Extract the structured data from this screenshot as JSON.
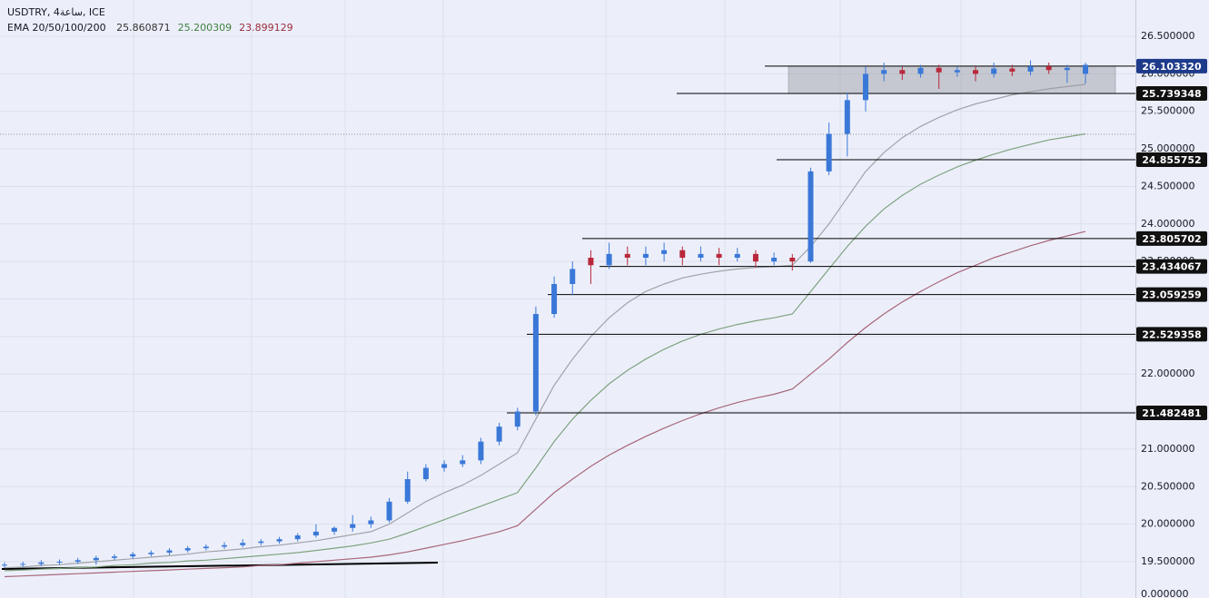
{
  "chart_data": {
    "type": "candlestick",
    "title": "USDTRY, 4ساعة, ICE",
    "indicator": {
      "label": "EMA 20/50/100/200",
      "values": [
        25.860871,
        25.200309,
        23.899129
      ],
      "colors": [
        "#333333",
        "#3f7f3f",
        "#9b2c3c"
      ]
    },
    "ylim": [
      19.016,
      26.984
    ],
    "yticks": [
      {
        "value": 19.5,
        "label": "19.500000"
      },
      {
        "value": 20,
        "label": "20.000000"
      },
      {
        "value": 20.5,
        "label": "20.500000"
      },
      {
        "value": 21,
        "label": "21.000000"
      },
      {
        "value": 21.5,
        "label": "21.500000"
      },
      {
        "value": 22,
        "label": "22.000000"
      },
      {
        "value": 22.5,
        "label": "22.500000"
      },
      {
        "value": 23,
        "label": "23.000000"
      },
      {
        "value": 23.5,
        "label": "23.500000"
      },
      {
        "value": 24,
        "label": "24.000000"
      },
      {
        "value": 24.5,
        "label": "24.500000"
      },
      {
        "value": 25,
        "label": "25.000000"
      },
      {
        "value": 25.5,
        "label": "25.500000"
      },
      {
        "value": 26,
        "label": "26.000000"
      },
      {
        "value": 26.5,
        "label": "26.500000"
      }
    ],
    "bottom_label": "0.000000",
    "up_color": "#3a78d8",
    "down_color": "#b8283a",
    "ohlc": [
      [
        19.45,
        19.49,
        19.42,
        19.46
      ],
      [
        19.46,
        19.5,
        19.43,
        19.47
      ],
      [
        19.47,
        19.52,
        19.44,
        19.49
      ],
      [
        19.49,
        19.53,
        19.46,
        19.5
      ],
      [
        19.5,
        19.55,
        19.47,
        19.52
      ],
      [
        19.52,
        19.58,
        19.46,
        19.55
      ],
      [
        19.55,
        19.6,
        19.52,
        19.57
      ],
      [
        19.57,
        19.63,
        19.54,
        19.6
      ],
      [
        19.6,
        19.65,
        19.57,
        19.62
      ],
      [
        19.62,
        19.68,
        19.59,
        19.65
      ],
      [
        19.65,
        19.71,
        19.62,
        19.68
      ],
      [
        19.68,
        19.73,
        19.65,
        19.7
      ],
      [
        19.7,
        19.76,
        19.67,
        19.72
      ],
      [
        19.72,
        19.8,
        19.69,
        19.75
      ],
      [
        19.75,
        19.8,
        19.72,
        19.77
      ],
      [
        19.77,
        19.83,
        19.74,
        19.8
      ],
      [
        19.8,
        19.88,
        19.77,
        19.85
      ],
      [
        19.85,
        20.0,
        19.82,
        19.9
      ],
      [
        19.9,
        19.97,
        19.86,
        19.95
      ],
      [
        19.95,
        20.12,
        19.9,
        20.0
      ],
      [
        20.0,
        20.1,
        19.95,
        20.05
      ],
      [
        20.05,
        20.35,
        20.02,
        20.3
      ],
      [
        20.3,
        20.7,
        20.27,
        20.6
      ],
      [
        20.6,
        20.8,
        20.57,
        20.75
      ],
      [
        20.75,
        20.85,
        20.7,
        20.8
      ],
      [
        20.8,
        20.92,
        20.76,
        20.85
      ],
      [
        20.85,
        21.15,
        20.8,
        21.1
      ],
      [
        21.1,
        21.35,
        21.05,
        21.3
      ],
      [
        21.3,
        21.55,
        21.25,
        21.5
      ],
      [
        21.5,
        22.9,
        21.45,
        22.8
      ],
      [
        22.8,
        23.3,
        22.75,
        23.2
      ],
      [
        23.2,
        23.5,
        23.05,
        23.4
      ],
      [
        23.55,
        23.65,
        23.2,
        23.45
      ],
      [
        23.45,
        23.75,
        23.4,
        23.6
      ],
      [
        23.6,
        23.7,
        23.45,
        23.55
      ],
      [
        23.55,
        23.7,
        23.45,
        23.6
      ],
      [
        23.6,
        23.75,
        23.5,
        23.65
      ],
      [
        23.65,
        23.7,
        23.45,
        23.55
      ],
      [
        23.55,
        23.7,
        23.5,
        23.6
      ],
      [
        23.6,
        23.68,
        23.45,
        23.55
      ],
      [
        23.55,
        23.68,
        23.5,
        23.6
      ],
      [
        23.6,
        23.65,
        23.42,
        23.5
      ],
      [
        23.5,
        23.62,
        23.45,
        23.55
      ],
      [
        23.55,
        23.6,
        23.38,
        23.5
      ],
      [
        23.5,
        24.75,
        23.48,
        24.7
      ],
      [
        24.7,
        25.35,
        24.65,
        25.2
      ],
      [
        25.2,
        25.75,
        24.9,
        25.65
      ],
      [
        25.65,
        26.1,
        25.5,
        26.0
      ],
      [
        26.0,
        26.15,
        25.9,
        26.05
      ],
      [
        26.05,
        26.1,
        25.92,
        26.0
      ],
      [
        26.0,
        26.12,
        25.95,
        26.08
      ],
      [
        26.08,
        26.12,
        25.8,
        26.02
      ],
      [
        26.02,
        26.1,
        25.96,
        26.05
      ],
      [
        26.05,
        26.1,
        25.9,
        26.0
      ],
      [
        26.0,
        26.15,
        25.95,
        26.07
      ],
      [
        26.07,
        26.12,
        25.97,
        26.03
      ],
      [
        26.03,
        26.18,
        25.98,
        26.1
      ],
      [
        26.1,
        26.15,
        26.0,
        26.05
      ],
      [
        26.05,
        26.12,
        25.88,
        26.08
      ],
      [
        26.0,
        26.15,
        25.87,
        26.12
      ]
    ],
    "series": [
      {
        "color": "#a0a4a8",
        "values": [
          19.42,
          19.43,
          19.45,
          19.46,
          19.48,
          19.5,
          19.52,
          19.54,
          19.56,
          19.58,
          19.6,
          19.63,
          19.65,
          19.67,
          19.7,
          19.72,
          19.75,
          19.78,
          19.82,
          19.86,
          19.9,
          20.0,
          20.15,
          20.3,
          20.42,
          20.52,
          20.65,
          20.8,
          20.95,
          21.4,
          21.85,
          22.2,
          22.5,
          22.75,
          22.95,
          23.1,
          23.2,
          23.28,
          23.33,
          23.37,
          23.4,
          23.42,
          23.43,
          23.45,
          23.7,
          24.0,
          24.35,
          24.7,
          24.95,
          25.15,
          25.3,
          25.42,
          25.52,
          25.6,
          25.66,
          25.72,
          25.76,
          25.8,
          25.83,
          25.86
        ]
      },
      {
        "color": "#7fa37f",
        "values": [
          19.38,
          19.39,
          19.4,
          19.41,
          19.42,
          19.43,
          19.45,
          19.46,
          19.48,
          19.49,
          19.51,
          19.52,
          19.54,
          19.56,
          19.58,
          19.6,
          19.62,
          19.65,
          19.68,
          19.71,
          19.75,
          19.8,
          19.88,
          19.97,
          20.06,
          20.15,
          20.24,
          20.33,
          20.42,
          20.75,
          21.1,
          21.4,
          21.65,
          21.87,
          22.05,
          22.2,
          22.33,
          22.44,
          22.53,
          22.6,
          22.66,
          22.71,
          22.75,
          22.8,
          23.1,
          23.4,
          23.7,
          23.97,
          24.2,
          24.38,
          24.53,
          24.65,
          24.76,
          24.85,
          24.93,
          25.0,
          25.06,
          25.12,
          25.16,
          25.2
        ]
      },
      {
        "color": "#a8667a",
        "values": [
          19.3,
          19.31,
          19.32,
          19.33,
          19.34,
          19.35,
          19.36,
          19.37,
          19.38,
          19.39,
          19.4,
          19.41,
          19.42,
          19.43,
          19.45,
          19.46,
          19.48,
          19.5,
          19.52,
          19.54,
          19.56,
          19.59,
          19.63,
          19.68,
          19.73,
          19.78,
          19.84,
          19.9,
          19.98,
          20.2,
          20.42,
          20.6,
          20.77,
          20.92,
          21.05,
          21.17,
          21.28,
          21.38,
          21.47,
          21.55,
          21.62,
          21.68,
          21.73,
          21.8,
          22.0,
          22.2,
          22.42,
          22.62,
          22.8,
          22.96,
          23.1,
          23.23,
          23.35,
          23.45,
          23.55,
          23.63,
          23.71,
          23.78,
          23.84,
          23.9
        ]
      }
    ],
    "levels": {
      "values": [
        26.10332,
        25.739348,
        24.855752,
        23.805702,
        23.434067,
        23.059259,
        22.529358,
        21.482481
      ],
      "value_labels": [
        "26.103320",
        "25.739348",
        "24.855752",
        "23.805702",
        "23.434067",
        "23.059259",
        "22.529358",
        "21.482481"
      ],
      "highlight_color": "#1e3a8a",
      "tag_color": "#111111"
    }
  }
}
